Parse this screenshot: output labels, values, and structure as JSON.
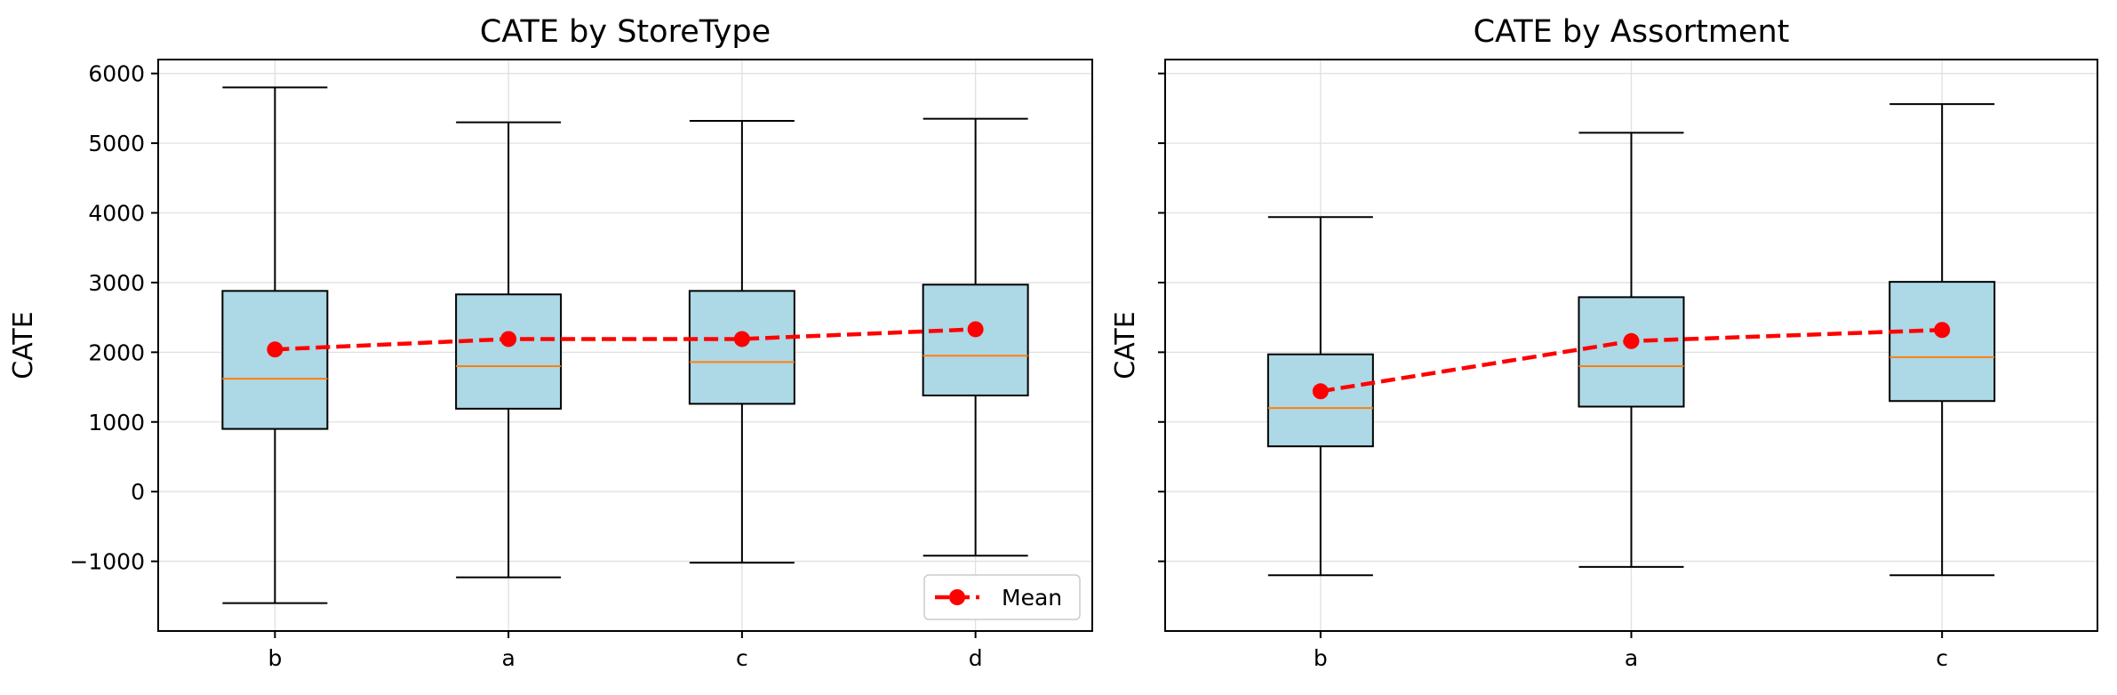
{
  "chart_data": [
    {
      "type": "box",
      "title": "CATE by StoreType",
      "xlabel": "",
      "ylabel": "CATE",
      "ylim": [
        -2000,
        6200
      ],
      "yticks": [
        -1000,
        0,
        1000,
        2000,
        3000,
        4000,
        5000,
        6000
      ],
      "ytick_labels": [
        "−1000",
        "0",
        "1000",
        "2000",
        "3000",
        "4000",
        "5000",
        "6000"
      ],
      "grid": true,
      "legend": {
        "position": "lower-right",
        "entries": [
          "Mean"
        ]
      },
      "categories": [
        "b",
        "a",
        "c",
        "d"
      ],
      "boxes": [
        {
          "whisker_low": -1600,
          "q1": 900,
          "median": 1620,
          "q3": 2880,
          "whisker_high": 5800
        },
        {
          "whisker_low": -1230,
          "q1": 1190,
          "median": 1800,
          "q3": 2830,
          "whisker_high": 5300
        },
        {
          "whisker_low": -1020,
          "q1": 1260,
          "median": 1860,
          "q3": 2880,
          "whisker_high": 5320
        },
        {
          "whisker_low": -920,
          "q1": 1380,
          "median": 1950,
          "q3": 2970,
          "whisker_high": 5350
        }
      ],
      "series": [
        {
          "name": "Mean",
          "values": [
            2040,
            2190,
            2190,
            2330
          ]
        }
      ]
    },
    {
      "type": "box",
      "title": "CATE by Assortment",
      "xlabel": "",
      "ylabel": "CATE",
      "ylim": [
        -2000,
        6200
      ],
      "yticks": [
        -1000,
        0,
        1000,
        2000,
        3000,
        4000,
        5000,
        6000
      ],
      "ytick_labels": [],
      "grid": true,
      "categories": [
        "b",
        "a",
        "c"
      ],
      "boxes": [
        {
          "whisker_low": -1200,
          "q1": 650,
          "median": 1200,
          "q3": 1970,
          "whisker_high": 3940
        },
        {
          "whisker_low": -1080,
          "q1": 1220,
          "median": 1800,
          "q3": 2790,
          "whisker_high": 5150
        },
        {
          "whisker_low": -1200,
          "q1": 1300,
          "median": 1930,
          "q3": 3010,
          "whisker_high": 5560
        }
      ],
      "series": [
        {
          "values": [
            1440,
            2160,
            2320
          ]
        }
      ]
    }
  ],
  "colors": {
    "box_fill": "#add8e6",
    "median": "#ff7f0e",
    "mean_line": "#ff0000",
    "grid": "#e0e0e0"
  }
}
